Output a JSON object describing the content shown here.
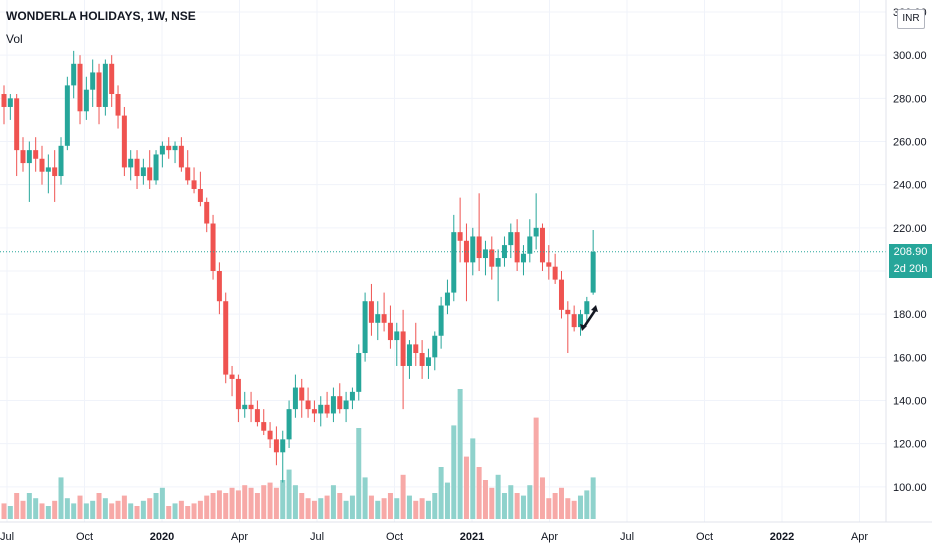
{
  "header": {
    "title": "WONDERLA HOLIDAYS, 1W, NSE",
    "volume_label": "Vol"
  },
  "price_scale": {
    "currency": "INR",
    "last_price": "208.90",
    "countdown": "2d 20h"
  },
  "colors": {
    "up": "#26a69a",
    "down": "#ef5350",
    "vol_up": "#8fd2cc",
    "vol_down": "#f7a9a7",
    "grid": "#f0f3fa",
    "last_line": "#26a69a"
  },
  "chart_data": {
    "type": "candlestick",
    "ylim": [
      80,
      320
    ],
    "y_ticks": [
      "320.00",
      "300.00",
      "280.00",
      "260.00",
      "240.00",
      "220.00",
      "200.00",
      "180.00",
      "160.00",
      "140.00",
      "120.00",
      "100.00"
    ],
    "x_ticks": [
      {
        "label": "Jul",
        "bold": false
      },
      {
        "label": "Oct",
        "bold": false
      },
      {
        "label": "2020",
        "bold": true
      },
      {
        "label": "Apr",
        "bold": false
      },
      {
        "label": "Jul",
        "bold": false
      },
      {
        "label": "Oct",
        "bold": false
      },
      {
        "label": "2021",
        "bold": true
      },
      {
        "label": "Apr",
        "bold": false
      },
      {
        "label": "Jul",
        "bold": false
      },
      {
        "label": "Oct",
        "bold": false
      },
      {
        "label": "2022",
        "bold": true
      },
      {
        "label": "Apr",
        "bold": false
      }
    ],
    "candles": [
      {
        "o": 282,
        "h": 286,
        "l": 268,
        "c": 276
      },
      {
        "o": 276,
        "h": 282,
        "l": 270,
        "c": 280
      },
      {
        "o": 280,
        "h": 282,
        "l": 244,
        "c": 256
      },
      {
        "o": 256,
        "h": 262,
        "l": 246,
        "c": 250
      },
      {
        "o": 250,
        "h": 260,
        "l": 232,
        "c": 256
      },
      {
        "o": 256,
        "h": 262,
        "l": 246,
        "c": 252
      },
      {
        "o": 252,
        "h": 258,
        "l": 240,
        "c": 246
      },
      {
        "o": 246,
        "h": 254,
        "l": 236,
        "c": 248
      },
      {
        "o": 248,
        "h": 256,
        "l": 232,
        "c": 244
      },
      {
        "o": 244,
        "h": 262,
        "l": 240,
        "c": 258
      },
      {
        "o": 258,
        "h": 290,
        "l": 256,
        "c": 286
      },
      {
        "o": 286,
        "h": 302,
        "l": 280,
        "c": 296
      },
      {
        "o": 296,
        "h": 300,
        "l": 268,
        "c": 274
      },
      {
        "o": 274,
        "h": 290,
        "l": 270,
        "c": 284
      },
      {
        "o": 284,
        "h": 298,
        "l": 276,
        "c": 292
      },
      {
        "o": 292,
        "h": 296,
        "l": 268,
        "c": 276
      },
      {
        "o": 276,
        "h": 298,
        "l": 272,
        "c": 296
      },
      {
        "o": 296,
        "h": 300,
        "l": 276,
        "c": 282
      },
      {
        "o": 282,
        "h": 286,
        "l": 266,
        "c": 272
      },
      {
        "o": 272,
        "h": 276,
        "l": 244,
        "c": 248
      },
      {
        "o": 248,
        "h": 256,
        "l": 242,
        "c": 252
      },
      {
        "o": 252,
        "h": 256,
        "l": 238,
        "c": 244
      },
      {
        "o": 244,
        "h": 252,
        "l": 240,
        "c": 248
      },
      {
        "o": 248,
        "h": 256,
        "l": 238,
        "c": 242
      },
      {
        "o": 242,
        "h": 256,
        "l": 240,
        "c": 254
      },
      {
        "o": 254,
        "h": 260,
        "l": 248,
        "c": 258
      },
      {
        "o": 258,
        "h": 262,
        "l": 252,
        "c": 256
      },
      {
        "o": 256,
        "h": 260,
        "l": 250,
        "c": 258
      },
      {
        "o": 258,
        "h": 262,
        "l": 246,
        "c": 248
      },
      {
        "o": 248,
        "h": 256,
        "l": 240,
        "c": 242
      },
      {
        "o": 242,
        "h": 248,
        "l": 236,
        "c": 238
      },
      {
        "o": 238,
        "h": 246,
        "l": 230,
        "c": 232
      },
      {
        "o": 232,
        "h": 234,
        "l": 218,
        "c": 222
      },
      {
        "o": 222,
        "h": 226,
        "l": 196,
        "c": 200
      },
      {
        "o": 200,
        "h": 204,
        "l": 180,
        "c": 186
      },
      {
        "o": 186,
        "h": 190,
        "l": 148,
        "c": 152
      },
      {
        "o": 152,
        "h": 156,
        "l": 142,
        "c": 150
      },
      {
        "o": 150,
        "h": 152,
        "l": 130,
        "c": 136
      },
      {
        "o": 136,
        "h": 144,
        "l": 132,
        "c": 138
      },
      {
        "o": 138,
        "h": 144,
        "l": 130,
        "c": 136
      },
      {
        "o": 136,
        "h": 140,
        "l": 128,
        "c": 130
      },
      {
        "o": 130,
        "h": 136,
        "l": 124,
        "c": 126
      },
      {
        "o": 126,
        "h": 130,
        "l": 118,
        "c": 122
      },
      {
        "o": 122,
        "h": 128,
        "l": 110,
        "c": 116
      },
      {
        "o": 116,
        "h": 126,
        "l": 102,
        "c": 122
      },
      {
        "o": 122,
        "h": 140,
        "l": 118,
        "c": 136
      },
      {
        "o": 136,
        "h": 152,
        "l": 132,
        "c": 146
      },
      {
        "o": 146,
        "h": 150,
        "l": 132,
        "c": 140
      },
      {
        "o": 140,
        "h": 146,
        "l": 132,
        "c": 136
      },
      {
        "o": 136,
        "h": 140,
        "l": 130,
        "c": 134
      },
      {
        "o": 134,
        "h": 142,
        "l": 128,
        "c": 138
      },
      {
        "o": 138,
        "h": 144,
        "l": 132,
        "c": 134
      },
      {
        "o": 134,
        "h": 146,
        "l": 130,
        "c": 142
      },
      {
        "o": 142,
        "h": 148,
        "l": 134,
        "c": 136
      },
      {
        "o": 136,
        "h": 144,
        "l": 130,
        "c": 140
      },
      {
        "o": 140,
        "h": 146,
        "l": 136,
        "c": 144
      },
      {
        "o": 144,
        "h": 166,
        "l": 140,
        "c": 162
      },
      {
        "o": 162,
        "h": 190,
        "l": 158,
        "c": 186
      },
      {
        "o": 186,
        "h": 194,
        "l": 170,
        "c": 176
      },
      {
        "o": 176,
        "h": 186,
        "l": 168,
        "c": 180
      },
      {
        "o": 180,
        "h": 190,
        "l": 172,
        "c": 176
      },
      {
        "o": 176,
        "h": 184,
        "l": 164,
        "c": 168
      },
      {
        "o": 168,
        "h": 176,
        "l": 156,
        "c": 172
      },
      {
        "o": 172,
        "h": 182,
        "l": 136,
        "c": 156
      },
      {
        "o": 156,
        "h": 168,
        "l": 150,
        "c": 166
      },
      {
        "o": 166,
        "h": 176,
        "l": 156,
        "c": 162
      },
      {
        "o": 162,
        "h": 168,
        "l": 150,
        "c": 156
      },
      {
        "o": 156,
        "h": 164,
        "l": 150,
        "c": 160
      },
      {
        "o": 160,
        "h": 172,
        "l": 154,
        "c": 170
      },
      {
        "o": 170,
        "h": 188,
        "l": 164,
        "c": 184
      },
      {
        "o": 184,
        "h": 196,
        "l": 180,
        "c": 190
      },
      {
        "o": 190,
        "h": 226,
        "l": 186,
        "c": 218
      },
      {
        "o": 218,
        "h": 234,
        "l": 204,
        "c": 214
      },
      {
        "o": 214,
        "h": 222,
        "l": 186,
        "c": 204
      },
      {
        "o": 204,
        "h": 220,
        "l": 198,
        "c": 216
      },
      {
        "o": 216,
        "h": 236,
        "l": 200,
        "c": 206
      },
      {
        "o": 206,
        "h": 214,
        "l": 198,
        "c": 210
      },
      {
        "o": 210,
        "h": 216,
        "l": 196,
        "c": 202
      },
      {
        "o": 202,
        "h": 210,
        "l": 186,
        "c": 206
      },
      {
        "o": 206,
        "h": 216,
        "l": 202,
        "c": 212
      },
      {
        "o": 212,
        "h": 222,
        "l": 206,
        "c": 218
      },
      {
        "o": 218,
        "h": 224,
        "l": 200,
        "c": 204
      },
      {
        "o": 204,
        "h": 212,
        "l": 198,
        "c": 208
      },
      {
        "o": 208,
        "h": 224,
        "l": 204,
        "c": 216
      },
      {
        "o": 216,
        "h": 236,
        "l": 210,
        "c": 220
      },
      {
        "o": 220,
        "h": 222,
        "l": 200,
        "c": 204
      },
      {
        "o": 204,
        "h": 212,
        "l": 196,
        "c": 202
      },
      {
        "o": 202,
        "h": 208,
        "l": 194,
        "c": 196
      },
      {
        "o": 196,
        "h": 200,
        "l": 178,
        "c": 182
      },
      {
        "o": 182,
        "h": 186,
        "l": 162,
        "c": 180
      },
      {
        "o": 180,
        "h": 184,
        "l": 172,
        "c": 174
      },
      {
        "o": 174,
        "h": 182,
        "l": 170,
        "c": 180
      },
      {
        "o": 180,
        "h": 188,
        "l": 176,
        "c": 186
      },
      {
        "o": 190,
        "h": 219,
        "l": 189,
        "c": 208.9
      }
    ],
    "volume": [
      {
        "v": 0.6,
        "up": false
      },
      {
        "v": 0.5,
        "up": true
      },
      {
        "v": 1.0,
        "up": false
      },
      {
        "v": 0.7,
        "up": false
      },
      {
        "v": 1.0,
        "up": true
      },
      {
        "v": 0.8,
        "up": true
      },
      {
        "v": 0.6,
        "up": false
      },
      {
        "v": 0.5,
        "up": true
      },
      {
        "v": 0.7,
        "up": false
      },
      {
        "v": 1.6,
        "up": true
      },
      {
        "v": 0.8,
        "up": true
      },
      {
        "v": 0.6,
        "up": true
      },
      {
        "v": 0.9,
        "up": false
      },
      {
        "v": 0.6,
        "up": true
      },
      {
        "v": 0.7,
        "up": true
      },
      {
        "v": 1.0,
        "up": false
      },
      {
        "v": 0.8,
        "up": true
      },
      {
        "v": 0.6,
        "up": false
      },
      {
        "v": 0.7,
        "up": false
      },
      {
        "v": 0.9,
        "up": false
      },
      {
        "v": 0.6,
        "up": true
      },
      {
        "v": 0.5,
        "up": false
      },
      {
        "v": 0.7,
        "up": true
      },
      {
        "v": 0.8,
        "up": false
      },
      {
        "v": 1.0,
        "up": true
      },
      {
        "v": 1.2,
        "up": true
      },
      {
        "v": 0.5,
        "up": false
      },
      {
        "v": 0.6,
        "up": true
      },
      {
        "v": 0.7,
        "up": false
      },
      {
        "v": 0.5,
        "up": false
      },
      {
        "v": 0.6,
        "up": false
      },
      {
        "v": 0.7,
        "up": false
      },
      {
        "v": 0.9,
        "up": false
      },
      {
        "v": 1.0,
        "up": false
      },
      {
        "v": 1.1,
        "up": false
      },
      {
        "v": 1.0,
        "up": false
      },
      {
        "v": 1.2,
        "up": false
      },
      {
        "v": 1.1,
        "up": false
      },
      {
        "v": 1.3,
        "up": false
      },
      {
        "v": 1.2,
        "up": false
      },
      {
        "v": 1.0,
        "up": false
      },
      {
        "v": 1.3,
        "up": false
      },
      {
        "v": 1.4,
        "up": false
      },
      {
        "v": 1.2,
        "up": false
      },
      {
        "v": 1.5,
        "up": true
      },
      {
        "v": 1.9,
        "up": true
      },
      {
        "v": 1.3,
        "up": true
      },
      {
        "v": 1.0,
        "up": false
      },
      {
        "v": 0.8,
        "up": false
      },
      {
        "v": 0.7,
        "up": false
      },
      {
        "v": 0.8,
        "up": true
      },
      {
        "v": 0.9,
        "up": false
      },
      {
        "v": 1.3,
        "up": true
      },
      {
        "v": 1.0,
        "up": false
      },
      {
        "v": 0.7,
        "up": true
      },
      {
        "v": 0.9,
        "up": true
      },
      {
        "v": 3.5,
        "up": true
      },
      {
        "v": 1.6,
        "up": true
      },
      {
        "v": 0.9,
        "up": false
      },
      {
        "v": 0.7,
        "up": true
      },
      {
        "v": 0.8,
        "up": false
      },
      {
        "v": 1.0,
        "up": false
      },
      {
        "v": 0.8,
        "up": true
      },
      {
        "v": 1.7,
        "up": false
      },
      {
        "v": 0.9,
        "up": true
      },
      {
        "v": 0.7,
        "up": false
      },
      {
        "v": 0.8,
        "up": false
      },
      {
        "v": 0.7,
        "up": true
      },
      {
        "v": 1.0,
        "up": true
      },
      {
        "v": 2.0,
        "up": true
      },
      {
        "v": 1.4,
        "up": true
      },
      {
        "v": 3.6,
        "up": true
      },
      {
        "v": 5.0,
        "up": true
      },
      {
        "v": 2.4,
        "up": false
      },
      {
        "v": 3.1,
        "up": true
      },
      {
        "v": 2.0,
        "up": false
      },
      {
        "v": 1.5,
        "up": false
      },
      {
        "v": 1.2,
        "up": false
      },
      {
        "v": 1.7,
        "up": true
      },
      {
        "v": 1.0,
        "up": true
      },
      {
        "v": 1.3,
        "up": true
      },
      {
        "v": 1.0,
        "up": false
      },
      {
        "v": 0.9,
        "up": true
      },
      {
        "v": 1.3,
        "up": true
      },
      {
        "v": 3.9,
        "up": false
      },
      {
        "v": 1.6,
        "up": false
      },
      {
        "v": 0.8,
        "up": false
      },
      {
        "v": 1.0,
        "up": false
      },
      {
        "v": 1.2,
        "up": false
      },
      {
        "v": 0.8,
        "up": false
      },
      {
        "v": 0.7,
        "up": false
      },
      {
        "v": 0.9,
        "up": true
      },
      {
        "v": 1.1,
        "up": true
      },
      {
        "v": 1.6,
        "up": true
      }
    ]
  }
}
